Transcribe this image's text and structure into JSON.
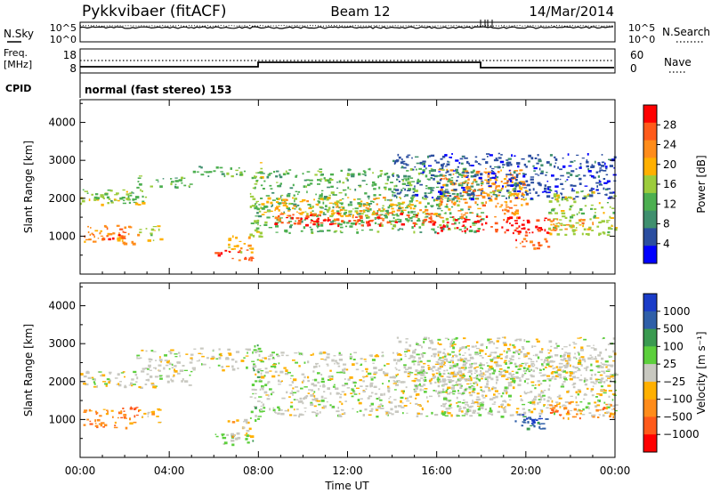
{
  "header": {
    "radar": "Pykkvibaer (fitACF)",
    "beam": "Beam 12",
    "date": "14/Mar/2014"
  },
  "aux_panels": {
    "nsky_label": "N.Sky",
    "nsky_ticks": [
      "10^5",
      "10^0"
    ],
    "nsearch_label": "N.Search",
    "nsearch_ticks": [
      "10^5",
      "10^0"
    ],
    "freq_label": "Freq.",
    "freq_unit": "[MHz]",
    "freq_ticks": [
      "18",
      "8"
    ],
    "nave_label": "Nave",
    "nave_ticks": [
      "60",
      "0"
    ],
    "cpid_label": "CPID",
    "cpid_text": "normal (fast stereo) 153"
  },
  "colors": {
    "power_scale": [
      "#0000ff",
      "#2b4ea0",
      "#3f8f6e",
      "#4caf50",
      "#9ccc3c",
      "#ffb000",
      "#ff8c1a",
      "#ff5a1a",
      "#ff0000"
    ],
    "velocity_scale": [
      "#ff0000",
      "#ff5a1a",
      "#ff8c1a",
      "#ffb000",
      "#c8c8c0",
      "#5ccf3c",
      "#3a9a50",
      "#2f5fa8",
      "#1a3cc8"
    ]
  },
  "chart_data": [
    {
      "type": "heatmap",
      "panel": "power",
      "ylabel": "Slant Range [km]",
      "xlabel": "Time UT",
      "ylim": [
        0,
        4600
      ],
      "yticks": [
        "1000",
        "2000",
        "3000",
        "4000"
      ],
      "xticks": [
        "00:00",
        "04:00",
        "08:00",
        "12:00",
        "16:00",
        "20:00",
        "00:00"
      ],
      "colorbar": {
        "label": "Power [dB]",
        "ticks": [
          "28",
          "24",
          "20",
          "16",
          "12",
          "8",
          "4"
        ]
      },
      "regions": [
        {
          "t0": 0.0,
          "t1": 3.0,
          "r0": 1850,
          "r1": 2300,
          "level": 4
        },
        {
          "t0": 0.3,
          "t1": 2.5,
          "r0": 1950,
          "r1": 2150,
          "level": 3
        },
        {
          "t0": 2.5,
          "t1": 5.0,
          "r0": 2300,
          "r1": 2600,
          "level": 3
        },
        {
          "t0": 5.0,
          "t1": 7.5,
          "r0": 2600,
          "r1": 2900,
          "level": 3
        },
        {
          "t0": 0.1,
          "t1": 2.6,
          "r0": 800,
          "r1": 1300,
          "level": 6
        },
        {
          "t0": 0.3,
          "t1": 2.0,
          "r0": 900,
          "r1": 1150,
          "level": 7
        },
        {
          "t0": 2.6,
          "t1": 3.6,
          "r0": 900,
          "r1": 1300,
          "level": 4
        },
        {
          "t0": 6.0,
          "t1": 7.8,
          "r0": 350,
          "r1": 650,
          "level": 7
        },
        {
          "t0": 6.6,
          "t1": 7.7,
          "r0": 550,
          "r1": 1050,
          "level": 5
        },
        {
          "t0": 7.6,
          "t1": 8.1,
          "r0": 1000,
          "r1": 3000,
          "level": 4
        },
        {
          "t0": 7.8,
          "t1": 18.0,
          "r0": 1100,
          "r1": 2800,
          "level": 3
        },
        {
          "t0": 8.0,
          "t1": 16.0,
          "r0": 1550,
          "r1": 2050,
          "level": 5
        },
        {
          "t0": 8.5,
          "t1": 16.0,
          "r0": 1350,
          "r1": 1650,
          "level": 7
        },
        {
          "t0": 10.0,
          "t1": 16.0,
          "r0": 1300,
          "r1": 1450,
          "level": 8
        },
        {
          "t0": 16.0,
          "t1": 21.0,
          "r0": 1100,
          "r1": 1550,
          "level": 8
        },
        {
          "t0": 16.0,
          "t1": 20.0,
          "r0": 1500,
          "r1": 2800,
          "level": 6
        },
        {
          "t0": 18.0,
          "t1": 20.0,
          "r0": 2000,
          "r1": 2500,
          "level": 5
        },
        {
          "t0": 19.5,
          "t1": 21.0,
          "r0": 700,
          "r1": 1150,
          "level": 7
        },
        {
          "t0": 21.0,
          "t1": 24.0,
          "r0": 1050,
          "r1": 2200,
          "level": 4
        },
        {
          "t0": 21.0,
          "t1": 23.0,
          "r0": 1150,
          "r1": 1500,
          "level": 6
        },
        {
          "t0": 14.0,
          "t1": 24.0,
          "r0": 2000,
          "r1": 3200,
          "level": 1
        }
      ]
    },
    {
      "type": "heatmap",
      "panel": "velocity",
      "ylabel": "Slant Range [km]",
      "xlabel": "Time UT",
      "ylim": [
        0,
        4600
      ],
      "yticks": [
        "1000",
        "2000",
        "3000",
        "4000"
      ],
      "xticks": [
        "00:00",
        "04:00",
        "08:00",
        "12:00",
        "16:00",
        "20:00",
        "00:00"
      ],
      "colorbar": {
        "label": "Velocity [m s⁻¹]",
        "ticks": [
          "1000",
          "500",
          "100",
          "25",
          "−25",
          "−100",
          "−500",
          "−1000"
        ]
      },
      "regions": [
        {
          "t0": 0.0,
          "t1": 5.0,
          "r0": 1850,
          "r1": 2300,
          "level": 4
        },
        {
          "t0": 2.5,
          "t1": 7.5,
          "r0": 2300,
          "r1": 2900,
          "level": 4
        },
        {
          "t0": 0.1,
          "t1": 2.6,
          "r0": 800,
          "r1": 1300,
          "level": 2
        },
        {
          "t0": 1.8,
          "t1": 2.6,
          "r0": 1000,
          "r1": 1400,
          "level": 1
        },
        {
          "t0": 2.6,
          "t1": 3.6,
          "r0": 900,
          "r1": 1300,
          "level": 3
        },
        {
          "t0": 6.0,
          "t1": 7.8,
          "r0": 350,
          "r1": 650,
          "level": 5
        },
        {
          "t0": 6.6,
          "t1": 7.7,
          "r0": 550,
          "r1": 1050,
          "level": 3
        },
        {
          "t0": 7.6,
          "t1": 8.1,
          "r0": 1000,
          "r1": 3000,
          "level": 5
        },
        {
          "t0": 7.8,
          "t1": 18.0,
          "r0": 1100,
          "r1": 2800,
          "level": 4
        },
        {
          "t0": 16.0,
          "t1": 24.0,
          "r0": 1100,
          "r1": 2800,
          "level": 4
        },
        {
          "t0": 19.5,
          "t1": 21.0,
          "r0": 700,
          "r1": 1150,
          "level": 7
        },
        {
          "t0": 19.9,
          "t1": 20.8,
          "r0": 800,
          "r1": 1050,
          "level": 8
        },
        {
          "t0": 21.0,
          "t1": 24.0,
          "r0": 1050,
          "r1": 1500,
          "level": 2
        },
        {
          "t0": 14.0,
          "t1": 24.0,
          "r0": 2000,
          "r1": 3200,
          "level": 4
        }
      ]
    }
  ]
}
